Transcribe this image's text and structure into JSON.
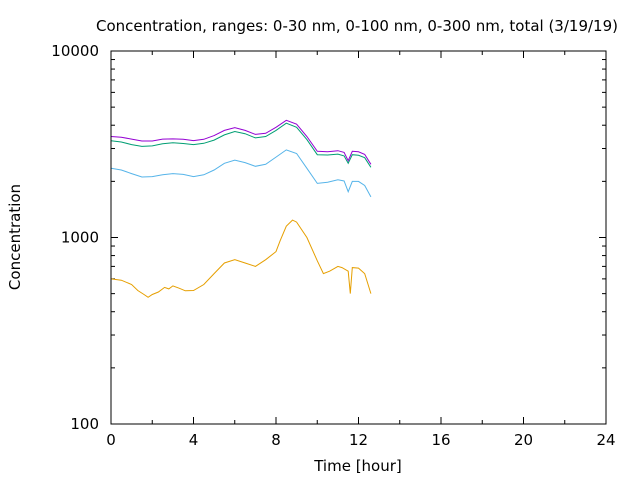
{
  "chart_data": {
    "type": "line",
    "title": "Concentration, ranges: 0-30 nm, 0-100 nm, 0-300 nm, total (3/19/19)",
    "xlabel": "Time [hour]",
    "ylabel": "Concentration",
    "xlim": [
      0,
      24
    ],
    "ylim": [
      100,
      10000
    ],
    "y_scale": "log",
    "x_ticks": [
      "0",
      "4",
      "8",
      "12",
      "16",
      "20",
      "24"
    ],
    "y_ticks": [
      "100",
      "1000",
      "10000"
    ],
    "grid": false,
    "legend": "none",
    "series": [
      {
        "color": "#e69f00",
        "points": [
          [
            0,
            600
          ],
          [
            0.5,
            590
          ],
          [
            1,
            560
          ],
          [
            1.3,
            520
          ],
          [
            1.6,
            495
          ],
          [
            1.8,
            478
          ],
          [
            2,
            495
          ],
          [
            2.3,
            510
          ],
          [
            2.6,
            540
          ],
          [
            2.8,
            530
          ],
          [
            3,
            550
          ],
          [
            3.3,
            535
          ],
          [
            3.6,
            518
          ],
          [
            4,
            520
          ],
          [
            4.5,
            560
          ],
          [
            5,
            640
          ],
          [
            5.5,
            730
          ],
          [
            6,
            760
          ],
          [
            6.5,
            730
          ],
          [
            7,
            700
          ],
          [
            7.5,
            760
          ],
          [
            8,
            840
          ],
          [
            8.2,
            960
          ],
          [
            8.5,
            1150
          ],
          [
            8.8,
            1240
          ],
          [
            9,
            1210
          ],
          [
            9.5,
            1000
          ],
          [
            10,
            750
          ],
          [
            10.3,
            640
          ],
          [
            10.6,
            660
          ],
          [
            11,
            700
          ],
          [
            11.2,
            690
          ],
          [
            11.5,
            660
          ],
          [
            11.6,
            500
          ],
          [
            11.7,
            690
          ],
          [
            12,
            685
          ],
          [
            12.3,
            640
          ],
          [
            12.6,
            500
          ]
        ]
      },
      {
        "color": "#56b4e9",
        "points": [
          [
            0,
            2350
          ],
          [
            0.5,
            2300
          ],
          [
            1,
            2200
          ],
          [
            1.5,
            2110
          ],
          [
            2,
            2120
          ],
          [
            2.5,
            2170
          ],
          [
            3,
            2200
          ],
          [
            3.5,
            2180
          ],
          [
            4,
            2120
          ],
          [
            4.5,
            2170
          ],
          [
            5,
            2300
          ],
          [
            5.5,
            2500
          ],
          [
            6,
            2600
          ],
          [
            6.5,
            2520
          ],
          [
            7,
            2410
          ],
          [
            7.5,
            2470
          ],
          [
            8,
            2700
          ],
          [
            8.5,
            2950
          ],
          [
            9,
            2820
          ],
          [
            9.5,
            2350
          ],
          [
            10,
            1950
          ],
          [
            10.5,
            1980
          ],
          [
            11,
            2040
          ],
          [
            11.3,
            2010
          ],
          [
            11.5,
            1760
          ],
          [
            11.7,
            2000
          ],
          [
            12,
            2000
          ],
          [
            12.3,
            1900
          ],
          [
            12.6,
            1650
          ]
        ]
      },
      {
        "color": "#009e73",
        "points": [
          [
            0,
            3300
          ],
          [
            0.5,
            3250
          ],
          [
            1,
            3150
          ],
          [
            1.5,
            3080
          ],
          [
            2,
            3100
          ],
          [
            2.5,
            3180
          ],
          [
            3,
            3220
          ],
          [
            3.5,
            3190
          ],
          [
            4,
            3150
          ],
          [
            4.5,
            3200
          ],
          [
            5,
            3330
          ],
          [
            5.5,
            3550
          ],
          [
            6,
            3700
          ],
          [
            6.5,
            3600
          ],
          [
            7,
            3420
          ],
          [
            7.5,
            3480
          ],
          [
            8,
            3750
          ],
          [
            8.5,
            4100
          ],
          [
            9,
            3900
          ],
          [
            9.5,
            3350
          ],
          [
            10,
            2780
          ],
          [
            10.5,
            2770
          ],
          [
            11,
            2800
          ],
          [
            11.3,
            2740
          ],
          [
            11.5,
            2500
          ],
          [
            11.7,
            2780
          ],
          [
            12,
            2760
          ],
          [
            12.3,
            2680
          ],
          [
            12.6,
            2380
          ]
        ]
      },
      {
        "color": "#9400d3",
        "points": [
          [
            0,
            3480
          ],
          [
            0.5,
            3450
          ],
          [
            1,
            3370
          ],
          [
            1.5,
            3290
          ],
          [
            2,
            3290
          ],
          [
            2.5,
            3370
          ],
          [
            3,
            3380
          ],
          [
            3.5,
            3360
          ],
          [
            4,
            3310
          ],
          [
            4.5,
            3360
          ],
          [
            5,
            3520
          ],
          [
            5.5,
            3750
          ],
          [
            6,
            3880
          ],
          [
            6.5,
            3750
          ],
          [
            7,
            3570
          ],
          [
            7.5,
            3620
          ],
          [
            8,
            3900
          ],
          [
            8.5,
            4250
          ],
          [
            9,
            4050
          ],
          [
            9.5,
            3480
          ],
          [
            10,
            2900
          ],
          [
            10.5,
            2880
          ],
          [
            11,
            2920
          ],
          [
            11.3,
            2860
          ],
          [
            11.5,
            2580
          ],
          [
            11.7,
            2900
          ],
          [
            12,
            2880
          ],
          [
            12.3,
            2790
          ],
          [
            12.6,
            2470
          ]
        ]
      }
    ]
  }
}
